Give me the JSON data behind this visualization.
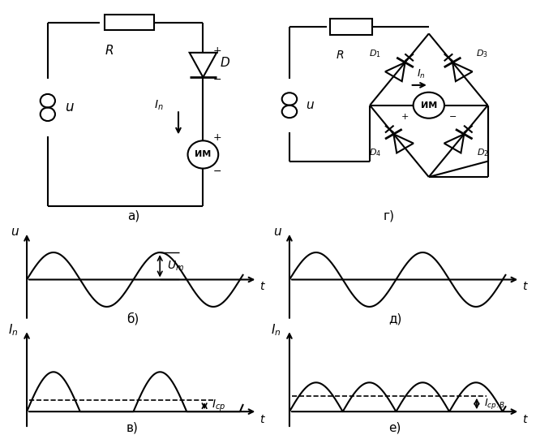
{
  "bg_color": "#ffffff",
  "line_color": "#000000",
  "lw": 1.5,
  "label_a": "а)",
  "label_b": "б)",
  "label_v": "в)",
  "label_g": "г)",
  "label_d": "д)",
  "label_e": "е)",
  "text_R": "R",
  "text_D": "D",
  "text_u": "u",
  "text_t": "t",
  "text_In": "$I_n$",
  "text_Um": "$U_m$",
  "text_Icp": "$I_{cp}$",
  "text_IcpB": "$I_{cp.B}$",
  "text_IM": "ИМ",
  "text_D1": "$D_1$",
  "text_D2": "$D_2$",
  "text_D3": "$D_3$",
  "text_D4": "$D_4$"
}
